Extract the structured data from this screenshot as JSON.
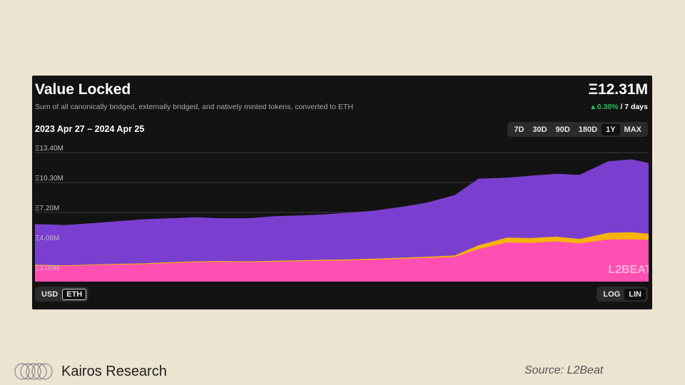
{
  "header": {
    "title": "Value Locked",
    "subtitle": "Sum of all canonically bridged, externally bridged, and natively minted tokens, converted to ETH",
    "value": "Ξ12.31M",
    "change_pct": "▴ 0.30%",
    "change_period": " / 7 days",
    "date_range": "2023 Apr 27 – 2024 Apr 25"
  },
  "timeframes": [
    "7D",
    "30D",
    "90D",
    "180D",
    "1Y",
    "MAX"
  ],
  "active_timeframe": "1Y",
  "units": [
    "USD",
    "ETH"
  ],
  "active_unit": "ETH",
  "scales": [
    "LOG",
    "LIN"
  ],
  "active_scale": "LIN",
  "watermark": "L2BEAT",
  "footer": {
    "brand": "Kairos Research",
    "source": "Source: L2Beat"
  },
  "colors": {
    "background": "#131313",
    "canonical": "#7b3fd0",
    "external": "#f5b40a",
    "native": "#ff4fb2",
    "grid": "#3c3c3c"
  },
  "chart_data": {
    "type": "area",
    "stacked": true,
    "x_range": [
      "2023-04-27",
      "2024-04-25"
    ],
    "ylim": [
      1.0,
      13.4
    ],
    "y_ticks": [
      "Ξ13.40M",
      "Ξ10.30M",
      "Ξ7.20M",
      "Ξ4.09M",
      "Ξ1.00M"
    ],
    "y_tick_values": [
      13.4,
      10.3,
      7.2,
      4.09,
      1.0
    ],
    "grid": true,
    "x": [
      "2023-04-27",
      "2023-05-15",
      "2023-06-01",
      "2023-06-15",
      "2023-07-01",
      "2023-07-15",
      "2023-08-01",
      "2023-08-15",
      "2023-09-01",
      "2023-09-15",
      "2023-10-01",
      "2023-10-15",
      "2023-11-01",
      "2023-11-15",
      "2023-12-01",
      "2023-12-15",
      "2024-01-01",
      "2024-01-15",
      "2024-02-01",
      "2024-02-15",
      "2024-03-01",
      "2024-03-15",
      "2024-04-01",
      "2024-04-15",
      "2024-04-25"
    ],
    "series": [
      {
        "values": [
          1.72,
          1.65,
          1.75,
          1.8,
          1.85,
          1.95,
          2.05,
          2.08,
          2.05,
          2.1,
          2.15,
          2.2,
          2.25,
          2.3,
          2.4,
          2.5,
          2.6,
          3.4,
          4.1,
          4.05,
          4.2,
          4.0,
          4.4,
          4.42,
          4.35
        ]
      },
      {
        "values": [
          1.8,
          1.72,
          1.82,
          1.88,
          1.93,
          2.04,
          2.14,
          2.17,
          2.14,
          2.19,
          2.25,
          2.3,
          2.35,
          2.42,
          2.52,
          2.62,
          2.75,
          3.8,
          4.6,
          4.55,
          4.7,
          4.45,
          5.1,
          5.15,
          5.0
        ]
      },
      {
        "values": [
          6.0,
          5.9,
          6.1,
          6.3,
          6.5,
          6.6,
          6.7,
          6.6,
          6.6,
          6.8,
          6.9,
          7.0,
          7.2,
          7.4,
          7.8,
          8.2,
          9.0,
          10.7,
          10.8,
          11.0,
          11.2,
          11.1,
          12.5,
          12.7,
          12.31
        ]
      }
    ]
  }
}
